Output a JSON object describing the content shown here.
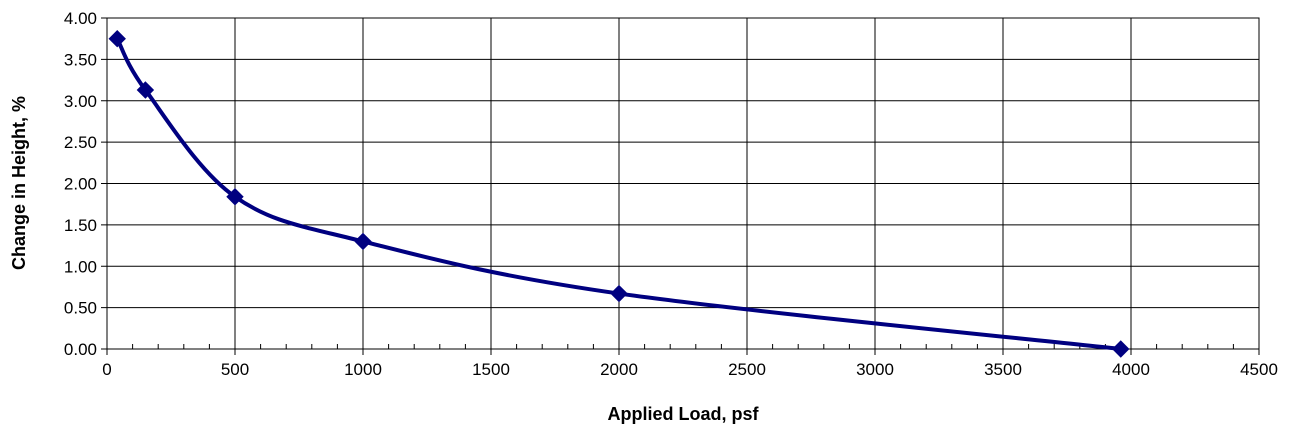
{
  "chart_data": {
    "type": "scatter",
    "title": "",
    "xlabel": "Applied Load, psf",
    "ylabel": "Change in Height, %",
    "xlim": [
      0,
      4500
    ],
    "ylim": [
      0,
      4
    ],
    "grid": true,
    "smooth": true,
    "x_ticks": [
      "0",
      "500",
      "1000",
      "1500",
      "2000",
      "2500",
      "3000",
      "3500",
      "4000",
      "4500"
    ],
    "y_ticks": [
      "0.00",
      "0.50",
      "1.00",
      "1.50",
      "2.00",
      "2.50",
      "3.00",
      "3.50",
      "4.00"
    ],
    "series": [
      {
        "marker": "diamond",
        "color": "#000080",
        "x": [
          40,
          150,
          500,
          1000,
          2000,
          3960
        ],
        "y": [
          3.75,
          3.13,
          1.84,
          1.3,
          0.67,
          0.0
        ]
      }
    ]
  }
}
